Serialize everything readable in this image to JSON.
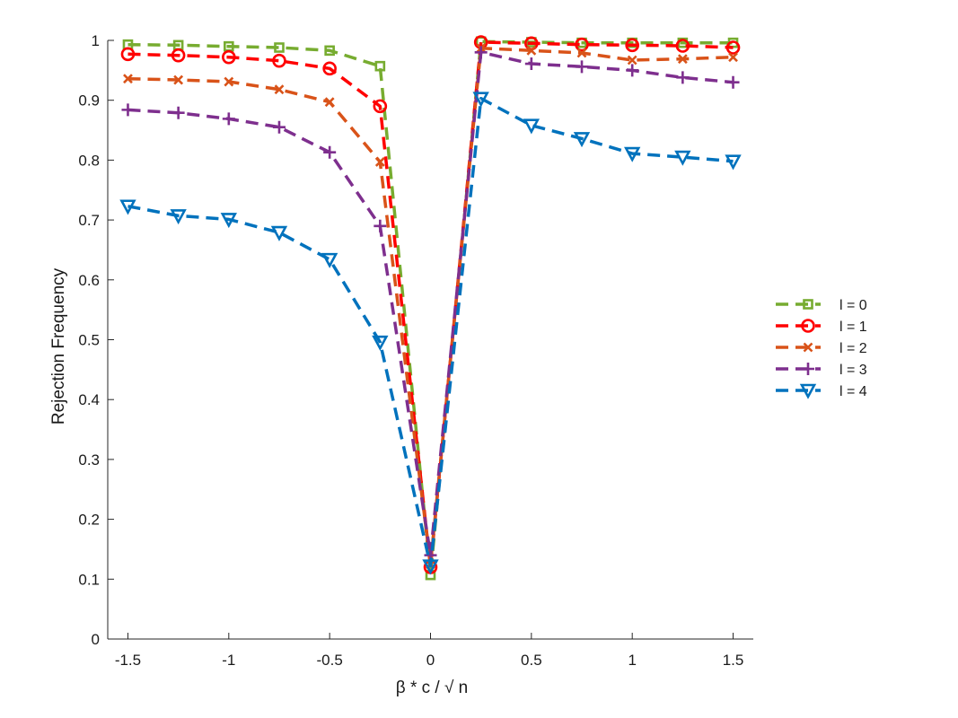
{
  "chart_data": {
    "type": "line",
    "title": "",
    "xlabel": "β * c / √ n",
    "ylabel": "Rejection Frequency",
    "xlim": [
      -1.6,
      1.6
    ],
    "ylim": [
      0,
      1
    ],
    "xticks": [
      -1.5,
      -1,
      -0.5,
      0,
      0.5,
      1,
      1.5
    ],
    "xtick_labels": [
      "-1.5",
      "-1",
      "-0.5",
      "0",
      "0.5",
      "1",
      "1.5"
    ],
    "yticks": [
      0,
      0.1,
      0.2,
      0.3,
      0.4,
      0.5,
      0.6,
      0.7,
      0.8,
      0.9,
      1
    ],
    "ytick_labels": [
      "0",
      "0.1",
      "0.2",
      "0.3",
      "0.4",
      "0.5",
      "0.6",
      "0.7",
      "0.8",
      "0.9",
      "1"
    ],
    "grid": false,
    "legend_position": "right",
    "x": [
      -1.5,
      -1.25,
      -1,
      -0.75,
      -0.5,
      -0.25,
      0,
      0.25,
      0.5,
      0.75,
      1,
      1.25,
      1.5
    ],
    "series": [
      {
        "name": "l = 0",
        "color": "#77ac30",
        "marker": "square",
        "values": [
          0.993,
          0.992,
          0.99,
          0.988,
          0.983,
          0.957,
          0.107,
          0.998,
          0.997,
          0.996,
          0.996,
          0.996,
          0.996
        ]
      },
      {
        "name": "l = 1",
        "color": "#ff0000",
        "marker": "circle",
        "values": [
          0.977,
          0.975,
          0.972,
          0.966,
          0.953,
          0.89,
          0.12,
          0.997,
          0.995,
          0.993,
          0.992,
          0.991,
          0.988
        ]
      },
      {
        "name": "l = 2",
        "color": "#d95319",
        "marker": "x",
        "values": [
          0.936,
          0.934,
          0.931,
          0.918,
          0.897,
          0.797,
          0.125,
          0.987,
          0.983,
          0.979,
          0.967,
          0.969,
          0.972
        ]
      },
      {
        "name": "l = 3",
        "color": "#7e2f8e",
        "marker": "plus",
        "values": [
          0.884,
          0.879,
          0.869,
          0.855,
          0.813,
          0.69,
          0.14,
          0.98,
          0.961,
          0.956,
          0.95,
          0.938,
          0.93
        ]
      },
      {
        "name": "l = 4",
        "color": "#0072bd",
        "marker": "triangle-down",
        "values": [
          0.723,
          0.707,
          0.701,
          0.679,
          0.634,
          0.496,
          0.122,
          0.903,
          0.858,
          0.836,
          0.811,
          0.805,
          0.798
        ]
      }
    ]
  }
}
